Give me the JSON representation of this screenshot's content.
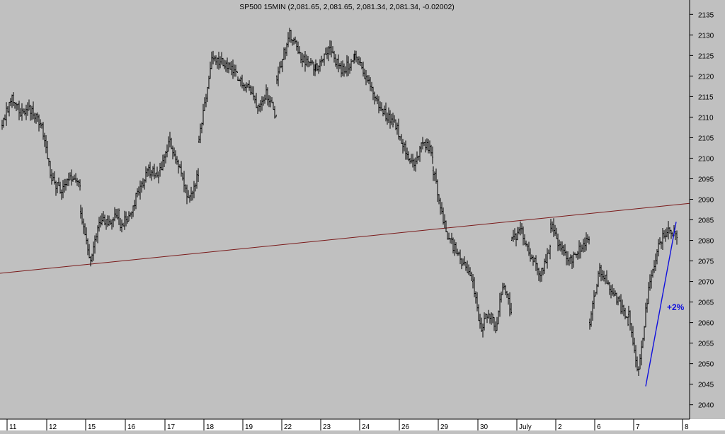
{
  "colors": {
    "background": "#c0c0c0",
    "bars": "#000000",
    "resistance_line": "#7a1a1a",
    "trend_line": "#1010dd",
    "annotation": "#1010dd",
    "axis": "#000000",
    "bottom_band": "#ffffff"
  },
  "chart_data": {
    "type": "ohlc",
    "title": "SP500 15MIN (2,081.65, 2,081.65, 2,081.34, 2,081.34, -0.02002)",
    "xlabel": "",
    "ylabel": "",
    "ylim": [
      2036.5,
      2138.5
    ],
    "y_ticks": [
      2040,
      2045,
      2050,
      2055,
      2060,
      2065,
      2070,
      2075,
      2080,
      2085,
      2090,
      2095,
      2100,
      2105,
      2110,
      2115,
      2120,
      2125,
      2130,
      2135
    ],
    "grid": false,
    "x_ticks": [
      "11",
      "12",
      "15",
      "16",
      "17",
      "18",
      "19",
      "22",
      "23",
      "24",
      "26",
      "29",
      "30",
      "July",
      "2",
      "6",
      "7",
      "8"
    ],
    "sessions": [
      {
        "label": "11",
        "path": [
          2108,
          2115,
          2111,
          2112,
          2108
        ]
      },
      {
        "label": "12",
        "path": [
          2108,
          2095,
          2092,
          2095,
          2094
        ]
      },
      {
        "label": "15",
        "path": [
          2087,
          2075,
          2085,
          2084,
          2087
        ]
      },
      {
        "label": "16",
        "path": [
          2084,
          2086,
          2093,
          2097,
          2096
        ]
      },
      {
        "label": "17",
        "path": [
          2097,
          2104,
          2098,
          2089,
          2096
        ]
      },
      {
        "label": "18",
        "path": [
          2104,
          2124,
          2123,
          2120
        ]
      },
      {
        "label": "19",
        "path": [
          2119,
          2118,
          2113,
          2116,
          2110
        ]
      },
      {
        "label": "22",
        "path": [
          2120,
          2130,
          2124,
          2122
        ]
      },
      {
        "label": "23",
        "path": [
          2122,
          2127,
          2121,
          2124
        ]
      },
      {
        "label": "24",
        "path": [
          2125,
          2119,
          2112,
          2109
        ]
      },
      {
        "label": "26",
        "path": [
          2109,
          2103,
          2098,
          2104,
          2101
        ]
      },
      {
        "label": "29",
        "path": [
          2097,
          2082,
          2076,
          2071
        ]
      },
      {
        "label": "30",
        "path": [
          2070,
          2058,
          2063,
          2059,
          2070,
          2063
        ]
      },
      {
        "label": "July",
        "path": [
          2080,
          2082,
          2076,
          2072,
          2078
        ]
      },
      {
        "label": "2",
        "path": [
          2084,
          2078,
          2075,
          2078,
          2080
        ]
      },
      {
        "label": "6",
        "path": [
          2060,
          2073,
          2069,
          2065,
          2060
        ]
      },
      {
        "label": "7",
        "path": [
          2062,
          2048,
          2067,
          2078,
          2083,
          2081
        ]
      }
    ],
    "last_close": 2081.34,
    "lines": [
      {
        "role": "resistance",
        "from": {
          "session": "11",
          "value": 2072
        },
        "to": {
          "session": "8",
          "value": 2089
        }
      },
      {
        "role": "trend",
        "from": {
          "session": "7",
          "value": 2044.5
        },
        "to": {
          "session": "7",
          "value": 2084.5
        }
      }
    ],
    "annotations": [
      {
        "text": "+2%"
      }
    ]
  }
}
